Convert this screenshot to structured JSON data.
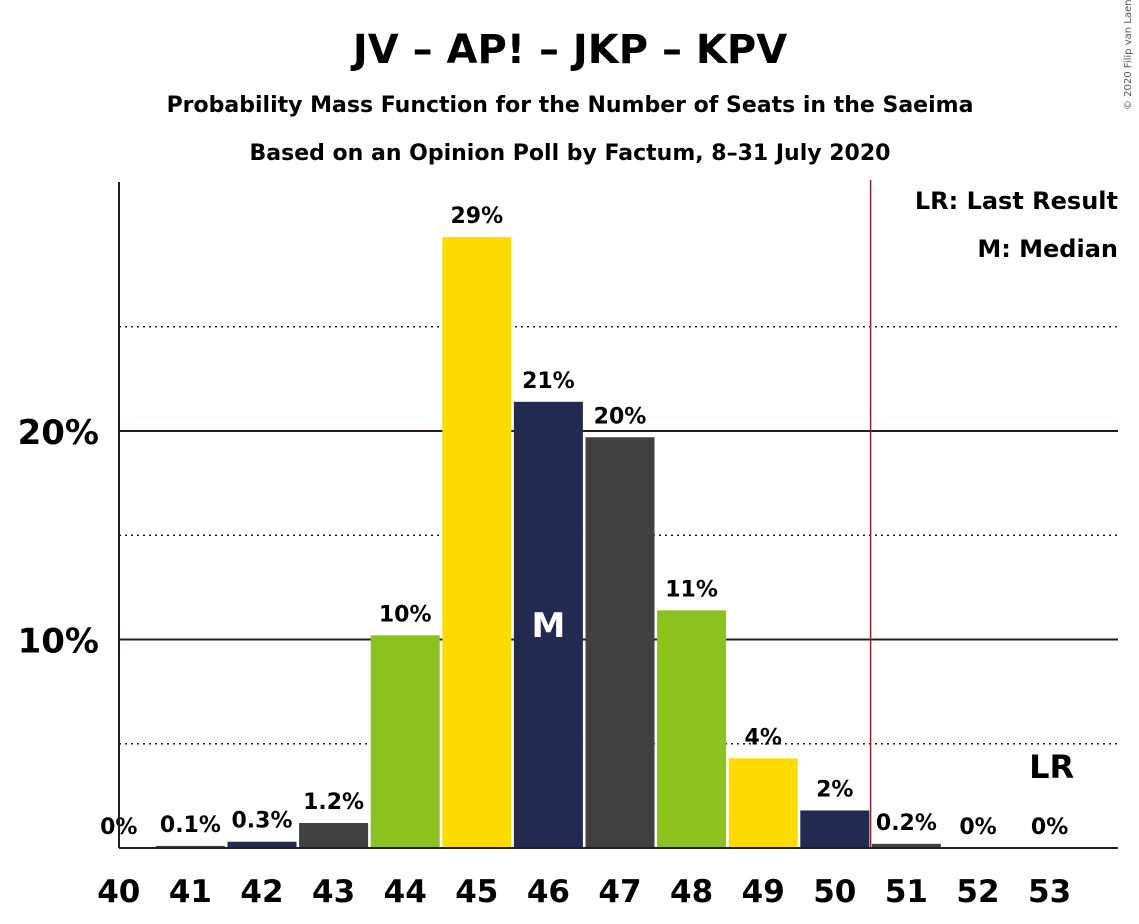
{
  "chart_data": {
    "type": "bar",
    "title": "JV – AP! – JKP – KPV",
    "subtitle": "Probability Mass Function for the Number of Seats in the Saeima",
    "subtitle2": "Based on an Opinion Poll by Factum, 8–31 July 2020",
    "copyright": "© 2020 Filip van Laenen",
    "legend": [
      "LR: Last Result",
      "M: Median"
    ],
    "legend_position": "top-right",
    "categories": [
      "40",
      "41",
      "42",
      "43",
      "44",
      "45",
      "46",
      "47",
      "48",
      "49",
      "50",
      "51",
      "52",
      "53"
    ],
    "values": [
      0,
      0.1,
      0.3,
      1.2,
      10.2,
      29.3,
      21.4,
      19.7,
      11.4,
      4.3,
      1.8,
      0.2,
      0,
      0
    ],
    "data_labels": [
      "0%",
      "0.1%",
      "0.3%",
      "1.2%",
      "10%",
      "29%",
      "21%",
      "20%",
      "11%",
      "4%",
      "2%",
      "0.2%",
      "0%",
      "0%"
    ],
    "bar_colors": [
      "#232A51",
      "#414141",
      "#232A51",
      "#414141",
      "#8CC21E",
      "#FDDA00",
      "#232A51",
      "#414141",
      "#8CC21E",
      "#FDDA00",
      "#232A51",
      "#414141",
      "#232A51",
      "#414141"
    ],
    "yticks": [
      {
        "value": 10,
        "label": "10%"
      },
      {
        "value": 20,
        "label": "20%"
      }
    ],
    "minor_gridlines": [
      5,
      15,
      25
    ],
    "ylim": [
      0,
      32
    ],
    "median": {
      "category": "46",
      "label": "M"
    },
    "last_result": {
      "category": "53",
      "label": "LR"
    },
    "majority_line_after": "50",
    "grid": true
  }
}
